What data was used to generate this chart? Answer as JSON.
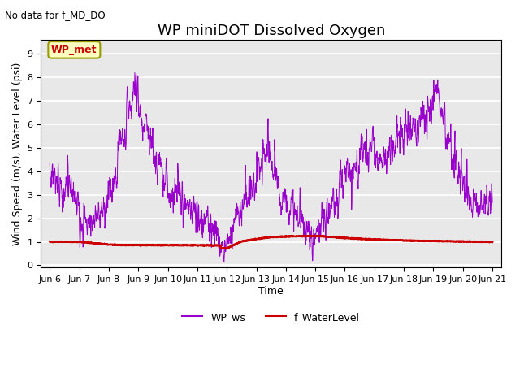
{
  "title": "WP miniDOT Dissolved Oxygen",
  "top_left_text": "No data for f_MD_DO",
  "ylabel": "Wind Speed (m/s), Water Level (psi)",
  "xlabel": "Time",
  "xlim_days": [
    5.7,
    21.3
  ],
  "ylim": [
    -0.1,
    9.6
  ],
  "yticks": [
    0.0,
    1.0,
    2.0,
    3.0,
    4.0,
    5.0,
    6.0,
    7.0,
    8.0,
    9.0
  ],
  "xtick_labels": [
    "Jun 6",
    "Jun 7",
    "Jun 8",
    "Jun 9",
    "Jun 10",
    "Jun 11",
    "Jun 12",
    "Jun 13",
    "Jun 14",
    "Jun 15",
    "Jun 16",
    "Jun 17",
    "Jun 18",
    "Jun 19",
    "Jun 20",
    "Jun 21"
  ],
  "xtick_positions": [
    6,
    7,
    8,
    9,
    10,
    11,
    12,
    13,
    14,
    15,
    16,
    17,
    18,
    19,
    20,
    21
  ],
  "wp_ws_color": "#9900CC",
  "f_wl_color": "#CC0000",
  "legend_label_ws": "WP_ws",
  "legend_label_wl": "f_WaterLevel",
  "inset_label": "WP_met",
  "inset_bg": "#FFFFC0",
  "inset_border": "#999900",
  "inset_text_color": "#CC0000",
  "plot_bg": "#E8E8E8",
  "fig_bg": "#FFFFFF",
  "title_fontsize": 13,
  "axis_label_fontsize": 9,
  "tick_fontsize": 8,
  "legend_fontsize": 9
}
